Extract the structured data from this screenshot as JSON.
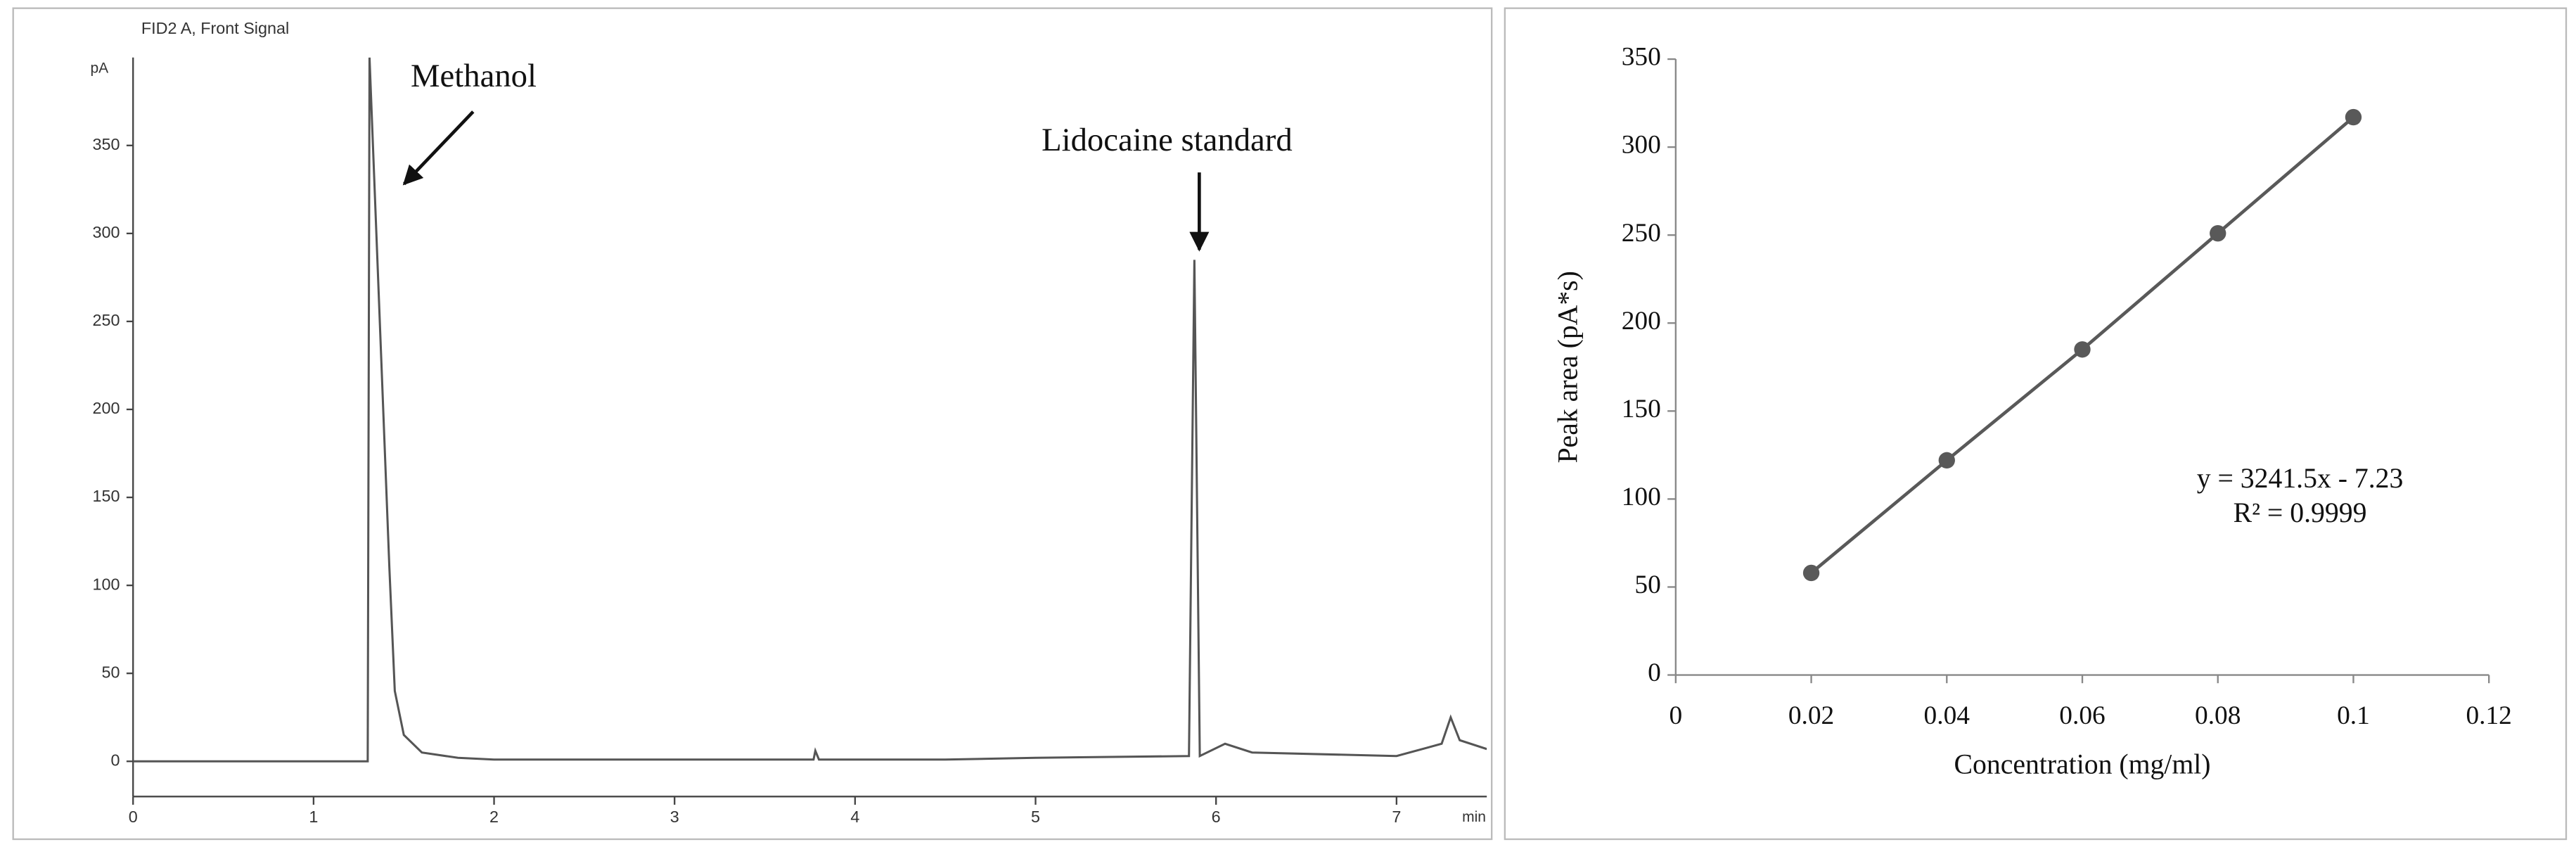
{
  "chart_data": [
    {
      "type": "line",
      "title": "FID2 A, Front Signal",
      "ylabel": "pA",
      "xlabel": "min",
      "x": [
        0,
        1.3,
        1.31,
        1.42,
        1.45,
        1.5,
        1.6,
        1.8,
        2,
        3,
        3.77,
        3.78,
        3.8,
        4.5,
        5,
        5.85,
        5.88,
        5.91,
        6.05,
        6.2,
        7,
        7.25,
        7.3,
        7.35,
        7.5
      ],
      "series": [
        {
          "color": "#555555",
          "values": [
            0,
            0,
            400,
            110,
            40,
            15,
            5,
            2,
            1,
            1,
            1,
            6,
            1,
            1,
            2,
            3,
            285,
            3,
            10,
            5,
            3,
            10,
            25,
            12,
            7
          ]
        }
      ],
      "xlim": [
        0,
        7.5
      ],
      "ylim": [
        -20,
        400
      ],
      "xticks": [
        0,
        1,
        2,
        3,
        4,
        5,
        6,
        7
      ],
      "yticks": [
        0,
        50,
        100,
        150,
        200,
        250,
        300,
        350
      ],
      "annotations": [
        "Methanol",
        "Lidocaine standard"
      ]
    },
    {
      "type": "scatter",
      "xlabel": "Concentration (mg/ml)",
      "ylabel": "Peak area (pA*s)",
      "x": [
        0.02,
        0.04,
        0.06,
        0.08,
        0.1
      ],
      "series": [
        {
          "color": "#595959",
          "values": [
            58,
            122,
            185,
            251,
            317
          ]
        }
      ],
      "xlim": [
        0,
        0.12
      ],
      "ylim": [
        0,
        350
      ],
      "xticks": [
        0,
        0.02,
        0.04,
        0.06,
        0.08,
        0.1,
        0.12
      ],
      "yticks": [
        0,
        50,
        100,
        150,
        200,
        250,
        300,
        350
      ],
      "annotations": [
        "y = 3241.5x - 7.23",
        "R² = 0.9999"
      ]
    }
  ]
}
